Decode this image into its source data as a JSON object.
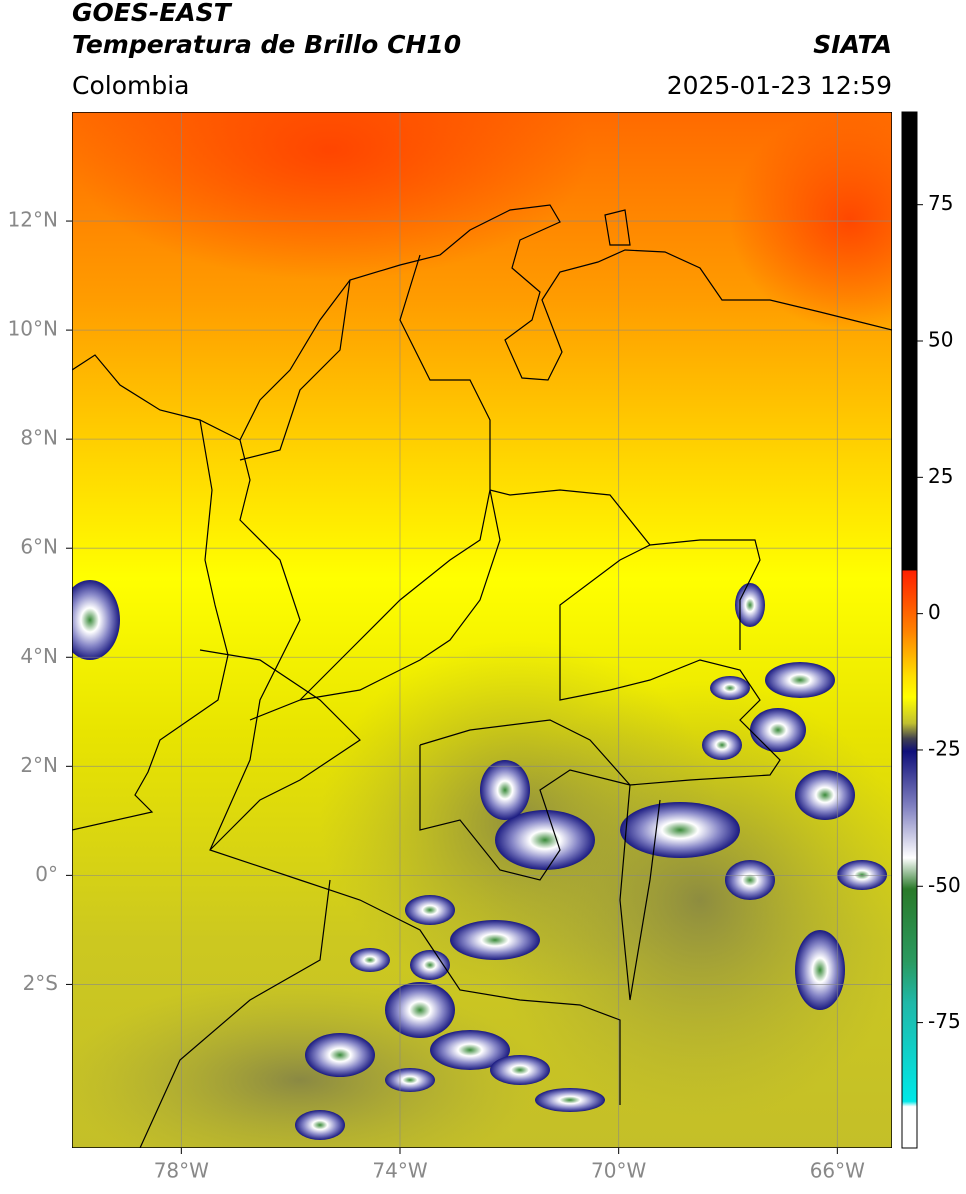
{
  "header": {
    "title": "GOES-EAST",
    "subtitle": "Temperatura de Brillo CH10",
    "source": "SIATA",
    "region": "Colombia",
    "timestamp": "2025-01-23 12:59"
  },
  "map": {
    "xlim": [
      -80,
      -65
    ],
    "ylim": [
      -5,
      14
    ],
    "xticks": [
      {
        "value": -78,
        "label": "78°W"
      },
      {
        "value": -74,
        "label": "74°W"
      },
      {
        "value": -70,
        "label": "70°W"
      },
      {
        "value": -66,
        "label": "66°W"
      }
    ],
    "yticks": [
      {
        "value": -2,
        "label": "2°S"
      },
      {
        "value": 0,
        "label": "0°"
      },
      {
        "value": 2,
        "label": "2°N"
      },
      {
        "value": 4,
        "label": "4°N"
      },
      {
        "value": 6,
        "label": "6°N"
      },
      {
        "value": 8,
        "label": "8°N"
      },
      {
        "value": 10,
        "label": "10°N"
      },
      {
        "value": 12,
        "label": "12°N"
      }
    ],
    "grid": true
  },
  "colorbar": {
    "lim": [
      -98,
      92
    ],
    "ticks": [
      -75,
      -50,
      -25,
      0,
      25,
      50,
      75
    ]
  }
}
